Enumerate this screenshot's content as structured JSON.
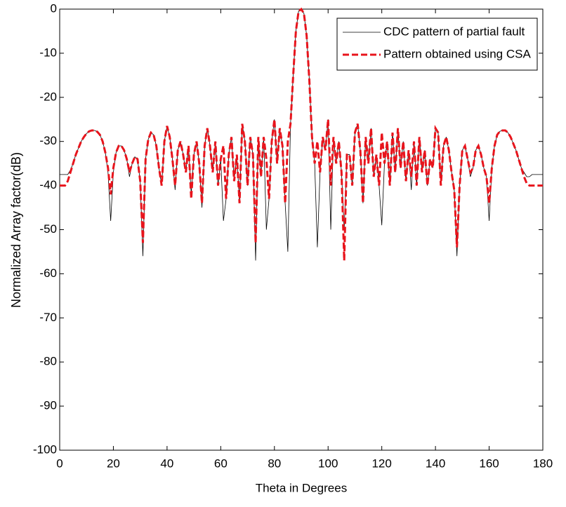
{
  "chart_data": {
    "type": "line",
    "xlabel": "Theta in Degrees",
    "ylabel": "Normalized Array factor(dB)",
    "xlim": [
      0,
      180
    ],
    "xticks": [
      0,
      20,
      40,
      60,
      80,
      100,
      120,
      140,
      160,
      180
    ],
    "ylim": [
      -100,
      0
    ],
    "yticks": [
      -100,
      -90,
      -80,
      -70,
      -60,
      -50,
      -40,
      -30,
      -20,
      -10,
      0
    ],
    "legend": "upper right",
    "x": [
      0,
      1,
      2,
      3,
      4,
      5,
      6,
      7,
      8,
      9,
      10,
      11,
      12,
      13,
      14,
      15,
      16,
      17,
      18,
      19,
      20,
      21,
      22,
      23,
      24,
      25,
      26,
      27,
      28,
      29,
      30,
      31,
      32,
      33,
      34,
      35,
      36,
      37,
      38,
      39,
      40,
      41,
      42,
      43,
      44,
      45,
      46,
      47,
      48,
      49,
      50,
      51,
      52,
      53,
      54,
      55,
      56,
      57,
      58,
      59,
      60,
      61,
      62,
      63,
      64,
      65,
      66,
      67,
      68,
      69,
      70,
      71,
      72,
      73,
      74,
      75,
      76,
      77,
      78,
      79,
      80,
      81,
      82,
      83,
      84,
      85,
      86,
      87,
      88,
      89,
      90,
      91,
      92,
      93,
      94,
      95,
      96,
      97,
      98,
      99,
      100,
      101,
      102,
      103,
      104,
      105,
      106,
      107,
      108,
      109,
      110,
      111,
      112,
      113,
      114,
      115,
      116,
      117,
      118,
      119,
      120,
      121,
      122,
      123,
      124,
      125,
      126,
      127,
      128,
      129,
      130,
      131,
      132,
      133,
      134,
      135,
      136,
      137,
      138,
      139,
      140,
      141,
      142,
      143,
      144,
      145,
      146,
      147,
      148,
      149,
      150,
      151,
      152,
      153,
      154,
      155,
      156,
      157,
      158,
      159,
      160,
      161,
      162,
      163,
      164,
      165,
      166,
      167,
      168,
      169,
      170,
      171,
      172,
      173,
      174,
      175,
      176,
      177,
      178,
      179,
      180
    ],
    "series": [
      {
        "name": "CDC pattern of partial fault",
        "color": "#000000",
        "style": "solid",
        "width": 0.8,
        "values": [
          -37.5,
          -37.5,
          -37.5,
          -37.5,
          -36.5,
          -35,
          -33,
          -31.5,
          -30,
          -29,
          -28.2,
          -27.7,
          -27.5,
          -27.5,
          -27.8,
          -28.5,
          -30,
          -32.5,
          -37,
          -48,
          -37,
          -32.5,
          -31,
          -31,
          -32,
          -34,
          -38,
          -35,
          -33.5,
          -34,
          -39,
          -56,
          -34,
          -29.5,
          -28,
          -28.5,
          -31,
          -36,
          -40,
          -30,
          -26.5,
          -29,
          -34,
          -41,
          -32,
          -30,
          -33,
          -37,
          -31,
          -42,
          -33,
          -30,
          -35,
          -45,
          -31,
          -27,
          -31,
          -37,
          -30,
          -40,
          -34,
          -48,
          -43,
          -33,
          -29,
          -39,
          -33,
          -44,
          -26,
          -30,
          -40,
          -29,
          -33,
          -57,
          -29,
          -38,
          -29,
          -50,
          -43,
          -30,
          -25,
          -35,
          -27,
          -31,
          -44,
          -55,
          -26,
          -15,
          -5,
          -0.5,
          0,
          -1,
          -6,
          -16,
          -29,
          -35,
          -54,
          -37,
          -29,
          -32,
          -25,
          -50,
          -29,
          -35,
          -30,
          -37,
          -50,
          -33,
          -33,
          -40,
          -28,
          -26,
          -32,
          -44,
          -29,
          -35,
          -27,
          -38,
          -33,
          -40,
          -49,
          -35,
          -30,
          -40,
          -28,
          -37,
          -27,
          -36,
          -30,
          -39,
          -32,
          -41,
          -30,
          -40,
          -29,
          -37,
          -32,
          -40,
          -34,
          -36,
          -27,
          -28,
          -40,
          -31,
          -29,
          -32,
          -37,
          -41,
          -56,
          -40,
          -32,
          -31,
          -34,
          -38,
          -36,
          -32,
          -31,
          -33,
          -36,
          -38,
          -48,
          -36,
          -31,
          -28.5,
          -27.7,
          -27.5,
          -27.5,
          -28,
          -29,
          -30.5,
          -32,
          -34,
          -36,
          -37,
          -38,
          -38,
          -37.5,
          -37.5,
          -37.5,
          -37.5,
          -37.5
        ]
      },
      {
        "name": "Pattern obtained using CSA",
        "color": "#e8141c",
        "style": "dashed",
        "width": 3,
        "values": [
          -40,
          -40,
          -40,
          -39,
          -37,
          -35,
          -33,
          -31.5,
          -30,
          -29,
          -28.2,
          -27.7,
          -27.5,
          -27.5,
          -27.8,
          -28.5,
          -30,
          -32.5,
          -36,
          -42,
          -36,
          -32.5,
          -31,
          -31,
          -32,
          -34,
          -37,
          -35,
          -33.5,
          -34,
          -39,
          -53,
          -34,
          -29.5,
          -28,
          -28.5,
          -31,
          -36,
          -40,
          -30,
          -26.5,
          -29,
          -34,
          -40,
          -32,
          -30,
          -33,
          -37,
          -31,
          -43,
          -33,
          -30,
          -35,
          -44,
          -31,
          -27,
          -31,
          -37,
          -30,
          -40,
          -34,
          -31,
          -43,
          -33,
          -29,
          -39,
          -33,
          -44,
          -26,
          -30,
          -40,
          -29,
          -33,
          -53,
          -29,
          -38,
          -29,
          -34,
          -43,
          -30,
          -25,
          -35,
          -27,
          -31,
          -44,
          -30,
          -26,
          -15,
          -5,
          -0.5,
          0,
          -1,
          -6,
          -16,
          -29,
          -35,
          -30,
          -37,
          -29,
          -32,
          -25,
          -40,
          -29,
          -35,
          -30,
          -37,
          -57,
          -33,
          -33,
          -40,
          -28,
          -26,
          -32,
          -44,
          -29,
          -35,
          -27,
          -38,
          -33,
          -40,
          -28,
          -35,
          -30,
          -40,
          -28,
          -37,
          -27,
          -36,
          -30,
          -39,
          -32,
          -38,
          -30,
          -40,
          -29,
          -37,
          -32,
          -40,
          -34,
          -36,
          -27,
          -28,
          -40,
          -31,
          -29,
          -32,
          -37,
          -41,
          -54,
          -40,
          -32,
          -31,
          -34,
          -37,
          -36,
          -32,
          -31,
          -33,
          -36,
          -38,
          -44,
          -36,
          -31,
          -28.5,
          -27.7,
          -27.5,
          -27.5,
          -28,
          -29,
          -30.5,
          -32,
          -34,
          -36,
          -38,
          -39.5,
          -40,
          -40,
          -40,
          -40,
          -40,
          -40
        ]
      }
    ]
  }
}
